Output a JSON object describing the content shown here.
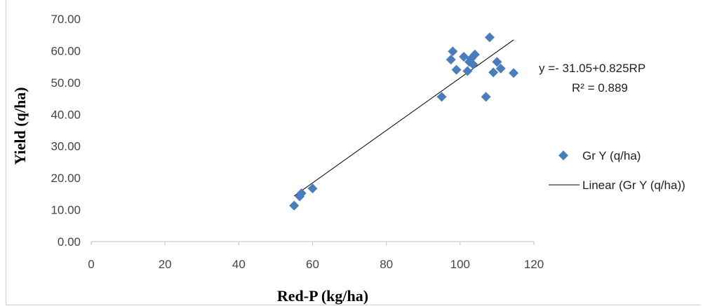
{
  "chart_data": {
    "type": "scatter",
    "xlabel": "Red-P (kg/ha)",
    "ylabel": "Yield (q/ha)",
    "xlim": [
      0,
      120
    ],
    "ylim": [
      0,
      70
    ],
    "x_ticks": [
      "0",
      "20",
      "40",
      "60",
      "80",
      "100",
      "120"
    ],
    "y_ticks": [
      "0.00",
      "10.00",
      "20.00",
      "30.00",
      "40.00",
      "50.00",
      "60.00",
      "70.00"
    ],
    "grid": false,
    "legend_placement": "right",
    "series": [
      {
        "name": "Gr Y (q/ha)",
        "marker": "diamond",
        "color": "#4a7ebb",
        "points": [
          [
            55,
            11.3
          ],
          [
            56.5,
            14.2
          ],
          [
            57,
            15.2
          ],
          [
            60,
            16.7
          ],
          [
            95,
            45.5
          ],
          [
            97.5,
            57.2
          ],
          [
            98,
            59.8
          ],
          [
            99,
            54.0
          ],
          [
            101,
            58.1
          ],
          [
            102,
            53.6
          ],
          [
            102.5,
            56.5
          ],
          [
            103,
            57.5
          ],
          [
            103.5,
            55.7
          ],
          [
            104,
            58.8
          ],
          [
            107,
            45.5
          ],
          [
            108,
            64.2
          ],
          [
            109,
            53.2
          ],
          [
            110,
            56.5
          ],
          [
            111,
            54.4
          ],
          [
            114.5,
            53.0
          ]
        ]
      },
      {
        "name": "Linear (Gr Y (q/ha))",
        "type": "line",
        "color": "#000000",
        "x_range": [
          55,
          114.5
        ],
        "intercept": -31.05,
        "slope": 0.825
      }
    ],
    "annotations": {
      "equation": "y =- 31.05+0.825RP",
      "r_squared": "R² = 0.889"
    }
  }
}
